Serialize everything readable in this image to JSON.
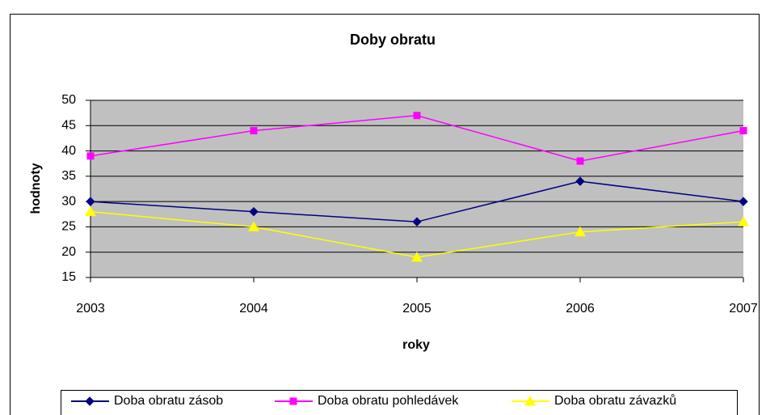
{
  "chart_data": {
    "type": "line",
    "title": "Doby obratu",
    "x_label": "roky",
    "y_label": "hodnoty",
    "categories": [
      "2003",
      "2004",
      "2005",
      "2006",
      "2007"
    ],
    "series": [
      {
        "name": "Doba obratu zásob",
        "color": "#000080",
        "marker": "diamond",
        "values": [
          30,
          28,
          26,
          34,
          30
        ]
      },
      {
        "name": "Doba obratu pohledávek",
        "color": "#ff00ff",
        "marker": "square",
        "values": [
          39,
          44,
          47,
          38,
          44
        ]
      },
      {
        "name": "Doba obratu závazků",
        "color": "#ffff00",
        "marker": "triangle",
        "values": [
          28,
          25,
          19,
          24,
          26
        ]
      }
    ],
    "ylim": [
      15,
      50
    ],
    "yticks": [
      15,
      20,
      25,
      30,
      35,
      40,
      45,
      50
    ],
    "grid": true,
    "plot_background": "#c0c0c0",
    "legend": "bottom"
  }
}
